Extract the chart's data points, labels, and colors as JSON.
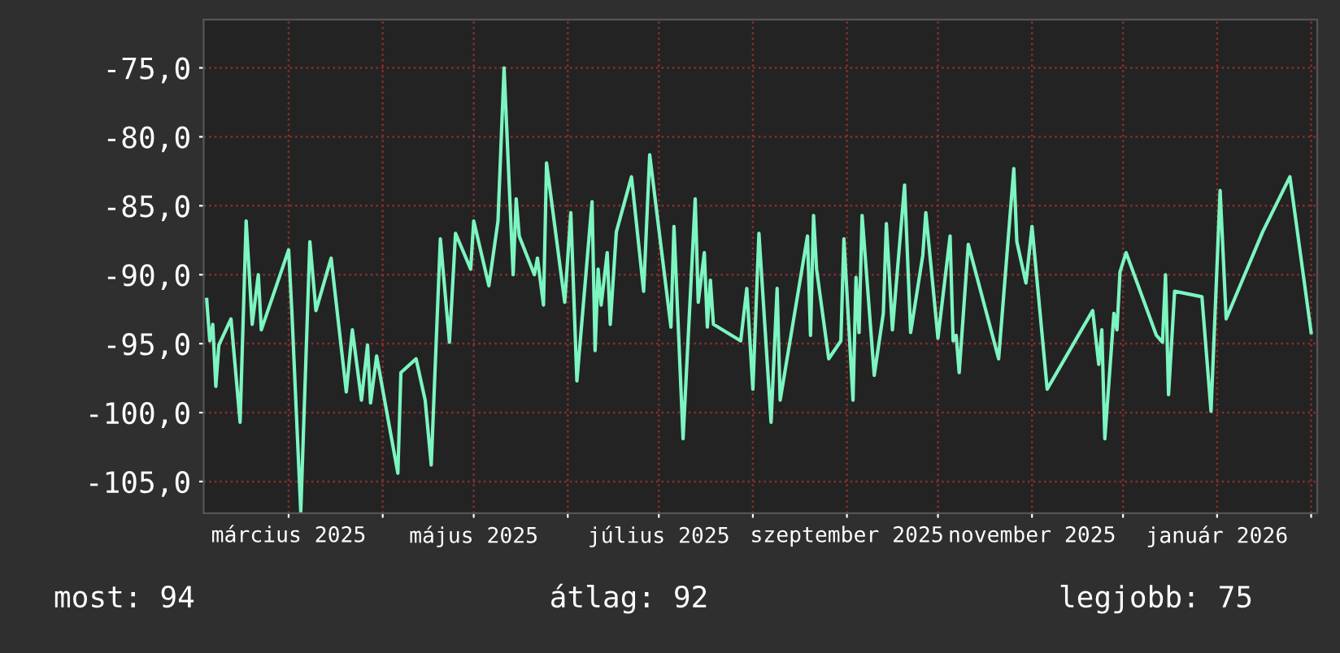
{
  "chart_data": {
    "type": "line",
    "x": [
      "2025-02-02",
      "2025-02-03",
      "2025-02-04",
      "2025-02-05",
      "2025-02-06",
      "2025-02-10",
      "2025-02-13",
      "2025-02-15",
      "2025-02-17",
      "2025-02-19",
      "2025-02-20",
      "2025-03-01",
      "2025-03-02",
      "2025-03-05",
      "2025-03-08",
      "2025-03-10",
      "2025-03-15",
      "2025-03-20",
      "2025-03-22",
      "2025-03-25",
      "2025-03-27",
      "2025-03-28",
      "2025-03-30",
      "2025-04-06",
      "2025-04-07",
      "2025-04-12",
      "2025-04-15",
      "2025-04-17",
      "2025-04-20",
      "2025-04-23",
      "2025-04-25",
      "2025-04-30",
      "2025-05-01",
      "2025-05-06",
      "2025-05-09",
      "2025-05-11",
      "2025-05-14",
      "2025-05-15",
      "2025-05-16",
      "2025-05-21",
      "2025-05-22",
      "2025-05-24",
      "2025-05-25",
      "2025-05-31",
      "2025-06-02",
      "2025-06-04",
      "2025-06-09",
      "2025-06-10",
      "2025-06-11",
      "2025-06-12",
      "2025-06-14",
      "2025-06-15",
      "2025-06-17",
      "2025-06-22",
      "2025-06-26",
      "2025-06-28",
      "2025-07-05",
      "2025-07-06",
      "2025-07-09",
      "2025-07-13",
      "2025-07-14",
      "2025-07-16",
      "2025-07-17",
      "2025-07-18",
      "2025-07-19",
      "2025-07-28",
      "2025-07-30",
      "2025-08-01",
      "2025-08-03",
      "2025-08-07",
      "2025-08-09",
      "2025-08-10",
      "2025-08-19",
      "2025-08-20",
      "2025-08-21",
      "2025-08-22",
      "2025-08-26",
      "2025-08-30",
      "2025-08-31",
      "2025-09-03",
      "2025-09-04",
      "2025-09-05",
      "2025-09-06",
      "2025-09-10",
      "2025-09-13",
      "2025-09-14",
      "2025-09-16",
      "2025-09-20",
      "2025-09-22",
      "2025-09-26",
      "2025-09-27",
      "2025-10-01",
      "2025-10-05",
      "2025-10-06",
      "2025-10-07",
      "2025-10-08",
      "2025-10-11",
      "2025-10-21",
      "2025-10-26",
      "2025-10-27",
      "2025-10-30",
      "2025-11-01",
      "2025-11-06",
      "2025-11-21",
      "2025-11-23",
      "2025-11-24",
      "2025-11-25",
      "2025-11-28",
      "2025-11-29",
      "2025-11-30",
      "2025-12-02",
      "2025-12-12",
      "2025-12-14",
      "2025-12-15",
      "2025-12-16",
      "2025-12-18",
      "2025-12-27",
      "2025-12-30",
      "2026-01-02",
      "2026-01-04",
      "2026-01-16",
      "2026-01-25",
      "2026-02-01"
    ],
    "series": [
      {
        "color": "#7cf5c0",
        "values": [
          -91.8,
          -94.8,
          -93.6,
          -98.1,
          -95.1,
          -93.2,
          -100.7,
          -86.1,
          -93.6,
          -90.0,
          -94.0,
          -88.2,
          -92.4,
          -107.2,
          -87.6,
          -92.6,
          -88.8,
          -98.5,
          -94.0,
          -99.1,
          -95.1,
          -99.3,
          -95.9,
          -104.4,
          -97.1,
          -96.1,
          -99.1,
          -103.8,
          -87.4,
          -94.9,
          -87.0,
          -89.6,
          -86.1,
          -90.8,
          -86.1,
          -75.0,
          -90.0,
          -84.5,
          -87.2,
          -90.0,
          -88.8,
          -92.2,
          -81.9,
          -92.0,
          -85.5,
          -97.7,
          -84.7,
          -95.5,
          -89.6,
          -92.2,
          -88.4,
          -93.6,
          -86.9,
          -82.9,
          -91.2,
          -81.3,
          -93.8,
          -86.5,
          -101.9,
          -84.5,
          -92.0,
          -88.4,
          -93.8,
          -90.4,
          -93.6,
          -94.8,
          -91.0,
          -98.3,
          -87.0,
          -100.7,
          -91.0,
          -99.1,
          -87.2,
          -94.4,
          -85.7,
          -89.6,
          -96.1,
          -94.8,
          -87.4,
          -99.1,
          -90.2,
          -94.2,
          -85.7,
          -97.3,
          -92.8,
          -86.3,
          -94.0,
          -83.5,
          -94.2,
          -88.6,
          -85.5,
          -94.6,
          -87.2,
          -94.8,
          -94.4,
          -97.1,
          -87.8,
          -96.1,
          -82.3,
          -87.6,
          -90.6,
          -86.5,
          -98.3,
          -92.6,
          -96.5,
          -94.0,
          -101.9,
          -92.8,
          -94.0,
          -89.8,
          -88.4,
          -94.4,
          -94.9,
          -90.0,
          -98.7,
          -91.2,
          -91.6,
          -99.9,
          -83.9,
          -93.2,
          -86.9,
          -82.9,
          -94.2
        ]
      }
    ],
    "xlim": [
      "2025-02-01",
      "2026-02-03"
    ],
    "xticks": [
      {
        "value": "2025-03-01",
        "label": "március 2025"
      },
      {
        "value": "2025-04-01",
        "label": null
      },
      {
        "value": "2025-05-01",
        "label": "május 2025"
      },
      {
        "value": "2025-06-01",
        "label": null
      },
      {
        "value": "2025-07-01",
        "label": "július 2025"
      },
      {
        "value": "2025-08-01",
        "label": null
      },
      {
        "value": "2025-09-01",
        "label": "szeptember 2025"
      },
      {
        "value": "2025-10-01",
        "label": null
      },
      {
        "value": "2025-11-01",
        "label": "november 2025"
      },
      {
        "value": "2025-12-01",
        "label": null
      },
      {
        "value": "2026-01-01",
        "label": "január 2026"
      },
      {
        "value": "2026-02-01",
        "label": null
      }
    ],
    "ylim": [
      -107.3,
      -71.5
    ],
    "yticks": [
      {
        "value": -105,
        "label": "-105,0"
      },
      {
        "value": -100,
        "label": "-100,0"
      },
      {
        "value": -95,
        "label": "-95,0"
      },
      {
        "value": -90,
        "label": "-90,0"
      },
      {
        "value": -85,
        "label": "-85,0"
      },
      {
        "value": -80,
        "label": "-80,0"
      },
      {
        "value": -75,
        "label": "-75,0"
      }
    ],
    "grid": true,
    "marker": "none",
    "line_style": "solid",
    "annotations": [
      "most: 94",
      "átlag: 92",
      "legjobb: 75"
    ]
  }
}
